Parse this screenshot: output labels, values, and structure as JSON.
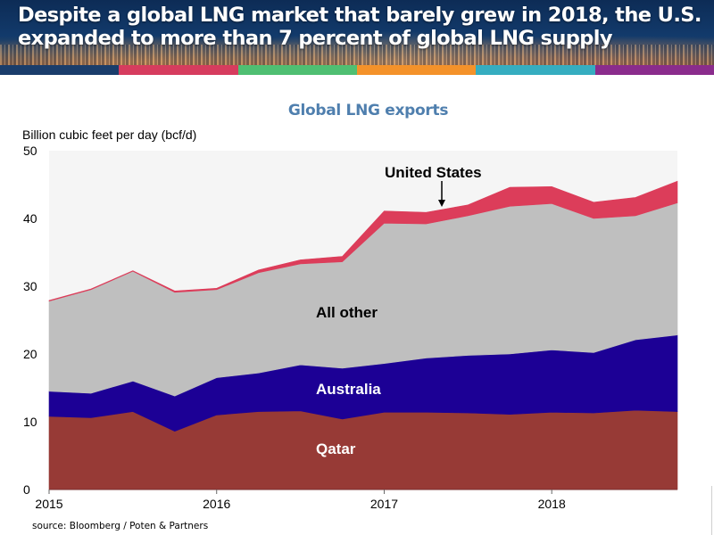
{
  "header": {
    "title": "Despite a global LNG market that barely grew in 2018, the U.S. expanded to more than 7 percent of global LNG supply",
    "title_line1": "Despite a global LNG market that barely grew in 2018, the U.S.",
    "title_line2": "expanded to more than 7 percent of global LNG supply",
    "strip_colors": [
      "#1a3d6b",
      "#d63c5e",
      "#4fbf72",
      "#f4922a",
      "#36adc0",
      "#8a2c8c"
    ]
  },
  "source": "source:  Bloomberg / Poten & Partners",
  "chart_data": {
    "type": "area",
    "stacked": true,
    "title": "Global LNG exports",
    "ylabel": "Billion cubic feet per day (bcf/d)",
    "xlabel": "",
    "ylim": [
      0,
      50
    ],
    "yticks": [
      0,
      10,
      20,
      30,
      40,
      50
    ],
    "xticks": [
      "2015",
      "2016",
      "2017",
      "2018"
    ],
    "grid": false,
    "legend": "inline-labels",
    "plot_background": "#f5f5f5",
    "x": [
      "2015 Q1",
      "2015 Q2",
      "2015 Q3",
      "2015 Q4",
      "2016 Q1",
      "2016 Q2",
      "2016 Q3",
      "2016 Q4",
      "2017 Q1",
      "2017 Q2",
      "2017 Q3",
      "2017 Q4",
      "2018 Q1",
      "2018 Q2",
      "2018 Q3",
      "2018 Q4"
    ],
    "series": [
      {
        "name": "Qatar",
        "label_color": "#ffffff",
        "color": "#973a36",
        "values": [
          10.8,
          10.6,
          11.5,
          8.6,
          11.0,
          11.5,
          11.6,
          10.4,
          11.4,
          11.4,
          11.3,
          11.1,
          11.4,
          11.3,
          11.7,
          11.5
        ]
      },
      {
        "name": "Australia",
        "label_color": "#ffffff",
        "color": "#1c0095",
        "values": [
          3.7,
          3.6,
          4.5,
          5.2,
          5.5,
          5.7,
          6.8,
          7.5,
          7.2,
          8.0,
          8.5,
          8.9,
          9.2,
          8.9,
          10.4,
          11.3
        ]
      },
      {
        "name": "All other",
        "label_color": "#000000",
        "color": "#bfbfbf",
        "values": [
          13.3,
          15.3,
          16.2,
          15.3,
          13.0,
          14.8,
          14.9,
          15.7,
          20.7,
          19.8,
          20.6,
          21.8,
          21.6,
          19.8,
          18.3,
          19.5
        ]
      },
      {
        "name": "United States",
        "label_color": "#000000",
        "color": "#dc3d5a",
        "values": [
          0.1,
          0.1,
          0.1,
          0.2,
          0.2,
          0.4,
          0.6,
          0.8,
          1.8,
          1.7,
          1.6,
          2.8,
          2.5,
          2.4,
          2.7,
          3.2
        ]
      }
    ],
    "annotations": [
      {
        "text": "United States",
        "arrow": true,
        "points_to": "2017 Q2"
      }
    ]
  }
}
